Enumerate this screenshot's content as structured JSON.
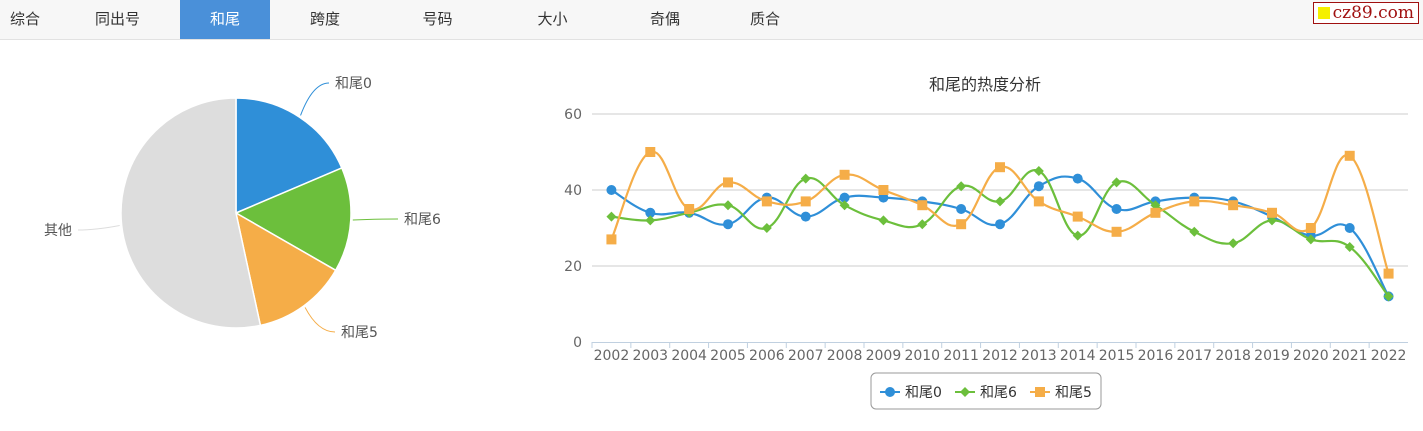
{
  "tabs": [
    {
      "label": "综合"
    },
    {
      "label": "同出号"
    },
    {
      "label": "和尾",
      "active": true
    },
    {
      "label": "跨度"
    },
    {
      "label": "号码"
    },
    {
      "label": "大小"
    },
    {
      "label": "奇偶"
    },
    {
      "label": "质合"
    }
  ],
  "logo": "cz89.com",
  "chart_data": [
    {
      "type": "pie",
      "slices": [
        {
          "label": "和尾0",
          "value": 18.6,
          "color": "#2f8fd8"
        },
        {
          "label": "和尾6",
          "value": 14.7,
          "color": "#6cbf3c"
        },
        {
          "label": "和尾5",
          "value": 13.3,
          "color": "#f5ad48"
        },
        {
          "label": "其他",
          "value": 53.4,
          "color": "#dddddd"
        }
      ]
    },
    {
      "type": "line",
      "title": "和尾的热度分析",
      "ylim": [
        0,
        60
      ],
      "yticks": [
        0,
        20,
        40,
        60
      ],
      "grid": true,
      "legend": "bottom-center",
      "x": [
        "2002",
        "2003",
        "2004",
        "2005",
        "2006",
        "2007",
        "2008",
        "2009",
        "2010",
        "2011",
        "2012",
        "2013",
        "2014",
        "2015",
        "2016",
        "2017",
        "2018",
        "2019",
        "2020",
        "2021",
        "2022"
      ],
      "series": [
        {
          "name": "和尾0",
          "color": "#2f8fd8",
          "marker": "circle",
          "values": [
            40,
            34,
            34,
            31,
            38,
            33,
            38,
            38,
            37,
            35,
            31,
            41,
            43,
            35,
            37,
            38,
            37,
            33,
            28,
            30,
            12
          ]
        },
        {
          "name": "和尾6",
          "color": "#6cbf3c",
          "marker": "diamond",
          "values": [
            33,
            32,
            34,
            36,
            30,
            43,
            36,
            32,
            31,
            41,
            37,
            45,
            28,
            42,
            36,
            29,
            26,
            32,
            27,
            25,
            12
          ]
        },
        {
          "name": "和尾5",
          "color": "#f5ad48",
          "marker": "square",
          "values": [
            27,
            50,
            35,
            42,
            37,
            37,
            44,
            40,
            36,
            31,
            46,
            37,
            33,
            29,
            34,
            37,
            36,
            34,
            30,
            49,
            18
          ]
        }
      ]
    }
  ]
}
